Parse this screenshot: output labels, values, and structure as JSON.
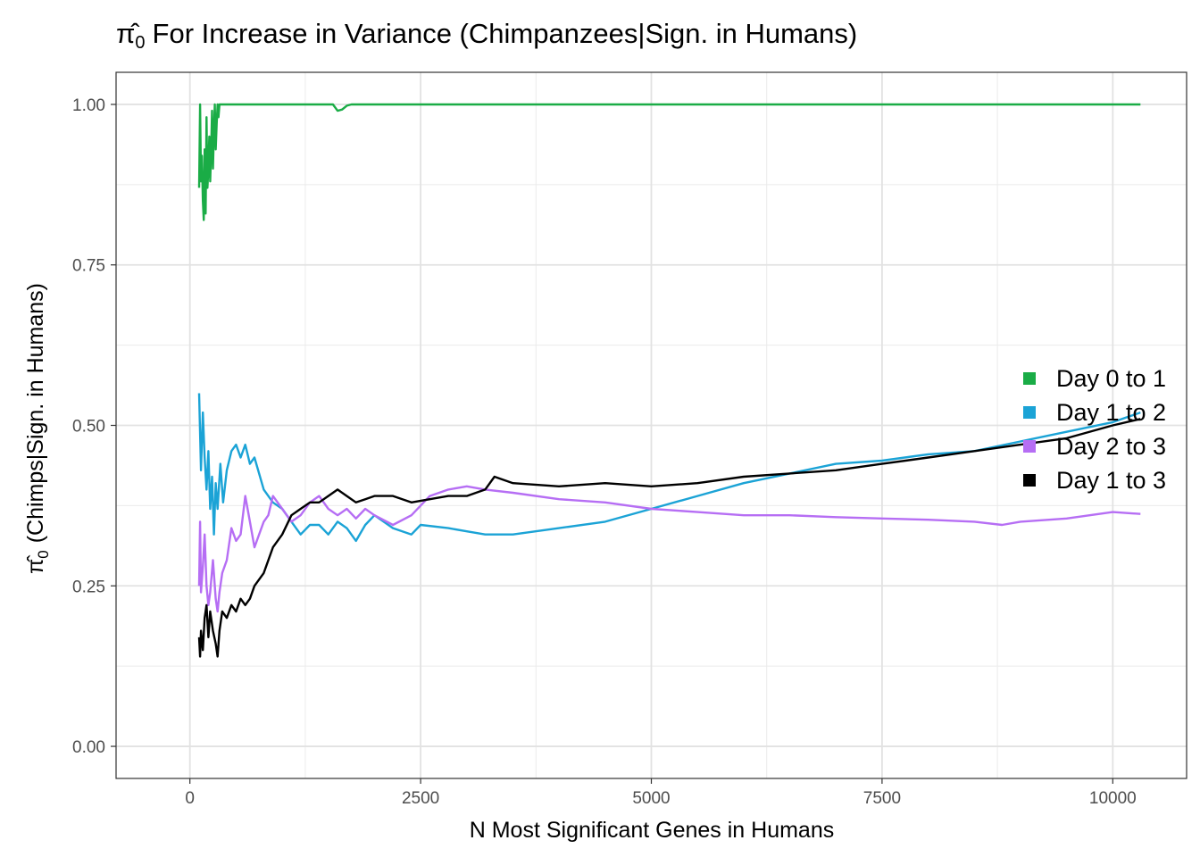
{
  "chart_data": {
    "type": "line",
    "title": {
      "pi_symbol": "π̂",
      "subscript": "0",
      "text": "For Increase in Variance (Chimpanzees|Sign. in Humans)"
    },
    "xlabel": "N Most Significant Genes in Humans",
    "ylabel": {
      "pi_symbol": "π̂",
      "subscript": "0",
      "text": "(Chimps|Sign. in Humans)"
    },
    "xlim": [
      -800,
      10800
    ],
    "ylim": [
      -0.05,
      1.05
    ],
    "x_ticks": [
      0,
      2500,
      5000,
      7500,
      10000
    ],
    "x_tick_labels": [
      "0",
      "2500",
      "5000",
      "7500",
      "10000"
    ],
    "y_ticks": [
      0,
      0.25,
      0.5,
      0.75,
      1.0
    ],
    "y_tick_labels": [
      "0.00",
      "0.25",
      "0.50",
      "0.75",
      "1.00"
    ],
    "grid": true,
    "legend_position": "right",
    "series": [
      {
        "name": "Day 0 to 1",
        "color": "#1aac46",
        "x": [
          100,
          110,
          120,
          130,
          140,
          150,
          160,
          170,
          180,
          190,
          200,
          210,
          220,
          230,
          240,
          250,
          260,
          270,
          280,
          290,
          300,
          310,
          320,
          400,
          1550,
          1600,
          1650,
          1700,
          1750,
          10300
        ],
        "y": [
          0.87,
          1.0,
          0.88,
          0.92,
          0.85,
          0.82,
          0.93,
          0.83,
          0.98,
          0.87,
          0.9,
          0.95,
          0.88,
          0.93,
          0.99,
          0.9,
          0.96,
          1.0,
          0.93,
          0.97,
          1.0,
          0.98,
          1.0,
          1.0,
          1.0,
          0.99,
          0.992,
          0.998,
          1.0,
          1.0
        ]
      },
      {
        "name": "Day 1 to 2",
        "color": "#1ba3d6",
        "x": [
          100,
          120,
          140,
          160,
          180,
          200,
          220,
          240,
          260,
          280,
          300,
          330,
          360,
          400,
          450,
          500,
          550,
          600,
          650,
          700,
          800,
          900,
          1000,
          1100,
          1200,
          1300,
          1400,
          1500,
          1600,
          1700,
          1800,
          1900,
          2000,
          2200,
          2400,
          2500,
          2800,
          3000,
          3200,
          3500,
          4000,
          4500,
          5000,
          5500,
          6000,
          6500,
          7000,
          7500,
          8000,
          8500,
          9000,
          9500,
          10000,
          10300
        ],
        "y": [
          0.55,
          0.43,
          0.52,
          0.45,
          0.4,
          0.46,
          0.37,
          0.42,
          0.33,
          0.41,
          0.37,
          0.44,
          0.38,
          0.43,
          0.46,
          0.47,
          0.45,
          0.47,
          0.44,
          0.45,
          0.4,
          0.38,
          0.37,
          0.35,
          0.33,
          0.345,
          0.345,
          0.33,
          0.35,
          0.34,
          0.32,
          0.345,
          0.36,
          0.34,
          0.33,
          0.345,
          0.34,
          0.335,
          0.33,
          0.33,
          0.34,
          0.35,
          0.37,
          0.39,
          0.41,
          0.425,
          0.44,
          0.445,
          0.455,
          0.46,
          0.475,
          0.49,
          0.505,
          0.52
        ]
      },
      {
        "name": "Day 2 to 3",
        "color": "#b66ef4",
        "x": [
          100,
          110,
          120,
          140,
          160,
          180,
          200,
          220,
          250,
          280,
          300,
          320,
          350,
          400,
          450,
          500,
          550,
          600,
          650,
          700,
          750,
          800,
          850,
          900,
          1000,
          1100,
          1200,
          1300,
          1400,
          1500,
          1600,
          1700,
          1800,
          1900,
          2000,
          2200,
          2400,
          2600,
          2800,
          3000,
          3200,
          3500,
          4000,
          4500,
          5000,
          5500,
          6000,
          6500,
          7000,
          7500,
          8000,
          8500,
          8800,
          9000,
          9500,
          10000,
          10300
        ],
        "y": [
          0.25,
          0.35,
          0.24,
          0.28,
          0.33,
          0.25,
          0.22,
          0.24,
          0.29,
          0.23,
          0.21,
          0.24,
          0.27,
          0.29,
          0.34,
          0.32,
          0.33,
          0.39,
          0.35,
          0.31,
          0.33,
          0.35,
          0.36,
          0.39,
          0.37,
          0.35,
          0.36,
          0.38,
          0.39,
          0.37,
          0.36,
          0.37,
          0.355,
          0.37,
          0.36,
          0.345,
          0.36,
          0.39,
          0.4,
          0.405,
          0.4,
          0.395,
          0.385,
          0.38,
          0.37,
          0.365,
          0.36,
          0.36,
          0.357,
          0.355,
          0.353,
          0.35,
          0.345,
          0.35,
          0.355,
          0.365,
          0.362
        ]
      },
      {
        "name": "Day 1 to 3",
        "color": "#000000",
        "x": [
          100,
          110,
          120,
          140,
          160,
          180,
          200,
          220,
          250,
          280,
          300,
          320,
          350,
          400,
          450,
          500,
          550,
          600,
          650,
          700,
          800,
          900,
          1000,
          1100,
          1200,
          1300,
          1400,
          1500,
          1600,
          1700,
          1800,
          1900,
          2000,
          2200,
          2400,
          2600,
          2800,
          3000,
          3200,
          3300,
          3500,
          4000,
          4500,
          5000,
          5500,
          6000,
          6500,
          7000,
          7500,
          8000,
          8500,
          9000,
          9500,
          10000,
          10300
        ],
        "y": [
          0.17,
          0.14,
          0.18,
          0.15,
          0.2,
          0.22,
          0.17,
          0.21,
          0.18,
          0.16,
          0.14,
          0.18,
          0.21,
          0.2,
          0.22,
          0.21,
          0.23,
          0.22,
          0.23,
          0.25,
          0.27,
          0.31,
          0.33,
          0.36,
          0.37,
          0.38,
          0.38,
          0.39,
          0.4,
          0.39,
          0.38,
          0.385,
          0.39,
          0.39,
          0.38,
          0.385,
          0.39,
          0.39,
          0.4,
          0.42,
          0.41,
          0.405,
          0.41,
          0.405,
          0.41,
          0.42,
          0.425,
          0.43,
          0.44,
          0.45,
          0.46,
          0.47,
          0.48,
          0.5,
          0.51
        ]
      }
    ]
  }
}
